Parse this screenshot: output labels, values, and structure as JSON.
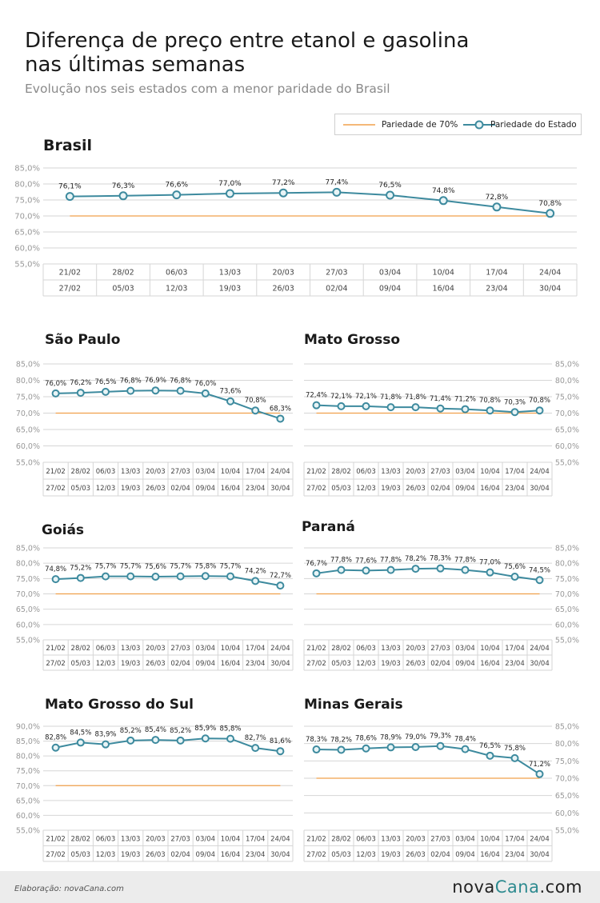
{
  "header": {
    "title_line1": "Diferença de preço entre etanol e gasolina",
    "title_line2": "nas últimas semanas",
    "subtitle": "Evolução nos seis estados com a menor paridade do Brasil"
  },
  "legend": {
    "reference_label": "Pariedade de 70%",
    "state_label": "Pariedade do Estado"
  },
  "colors": {
    "series_line": "#3d8a9e",
    "marker_fill": "#e8f4f6",
    "reference_line": "#f0a04b",
    "grid": "#d6d6d6",
    "tick_text": "#999999",
    "brand_accent": "#2d8a8f"
  },
  "footer": {
    "credit": "Elaboração: novaCana.com",
    "brand_part1": "nova",
    "brand_part2": "Cana",
    "brand_part3": ".com"
  },
  "chart_data": [
    {
      "type": "line",
      "title": "Brasil",
      "categories_start": [
        "21/02",
        "28/02",
        "06/03",
        "13/03",
        "20/03",
        "27/03",
        "03/04",
        "10/04",
        "17/04",
        "24/04"
      ],
      "categories_end": [
        "27/02",
        "05/03",
        "12/03",
        "19/03",
        "26/03",
        "02/04",
        "09/04",
        "16/04",
        "23/04",
        "30/04"
      ],
      "values": [
        76.1,
        76.3,
        76.6,
        77.0,
        77.2,
        77.4,
        76.5,
        74.8,
        72.8,
        70.8
      ],
      "labels": [
        "76,1%",
        "76,3%",
        "76,6%",
        "77,0%",
        "77,2%",
        "77,4%",
        "76,5%",
        "74,8%",
        "72,8%",
        "70,8%"
      ],
      "reference": 70,
      "ylim": [
        55,
        85
      ],
      "yticks": [
        "55,0%",
        "60,0%",
        "65,0%",
        "70,0%",
        "75,0%",
        "80,0%",
        "85,0%"
      ],
      "axis_side": "left"
    },
    {
      "type": "line",
      "title": "São Paulo",
      "categories_start": [
        "21/02",
        "28/02",
        "06/03",
        "13/03",
        "20/03",
        "27/03",
        "03/04",
        "10/04",
        "17/04",
        "24/04"
      ],
      "categories_end": [
        "27/02",
        "05/03",
        "12/03",
        "19/03",
        "26/03",
        "02/04",
        "09/04",
        "16/04",
        "23/04",
        "30/04"
      ],
      "values": [
        76.0,
        76.2,
        76.5,
        76.8,
        76.9,
        76.8,
        76.0,
        73.6,
        70.8,
        68.3
      ],
      "labels": [
        "76,0%",
        "76,2%",
        "76,5%",
        "76,8%",
        "76,9%",
        "76,8%",
        "76,0%",
        "73,6%",
        "70,8%",
        "68,3%"
      ],
      "reference": 70,
      "ylim": [
        55,
        85
      ],
      "yticks": [
        "55,0%",
        "60,0%",
        "65,0%",
        "70,0%",
        "75,0%",
        "80,0%",
        "85,0%"
      ],
      "axis_side": "left"
    },
    {
      "type": "line",
      "title": "Mato Grosso",
      "categories_start": [
        "21/02",
        "28/02",
        "06/03",
        "13/03",
        "20/03",
        "27/03",
        "03/04",
        "10/04",
        "17/04",
        "24/04"
      ],
      "categories_end": [
        "27/02",
        "05/03",
        "12/03",
        "19/03",
        "26/03",
        "02/04",
        "09/04",
        "16/04",
        "23/04",
        "30/04"
      ],
      "values": [
        72.4,
        72.1,
        72.1,
        71.8,
        71.8,
        71.4,
        71.2,
        70.8,
        70.3,
        70.8
      ],
      "labels": [
        "72,4%",
        "72,1%",
        "72,1%",
        "71,8%",
        "71,8%",
        "71,4%",
        "71,2%",
        "70,8%",
        "70,3%",
        "70,8%"
      ],
      "reference": 70,
      "ylim": [
        55,
        85
      ],
      "yticks": [
        "55,0%",
        "60,0%",
        "65,0%",
        "70,0%",
        "75,0%",
        "80,0%",
        "85,0%"
      ],
      "axis_side": "right"
    },
    {
      "type": "line",
      "title": "Goiás",
      "categories_start": [
        "21/02",
        "28/02",
        "06/03",
        "13/03",
        "20/03",
        "27/03",
        "03/04",
        "10/04",
        "17/04",
        "24/04"
      ],
      "categories_end": [
        "27/02",
        "05/03",
        "12/03",
        "19/03",
        "26/03",
        "02/04",
        "09/04",
        "16/04",
        "23/04",
        "30/04"
      ],
      "values": [
        74.8,
        75.2,
        75.7,
        75.7,
        75.6,
        75.7,
        75.8,
        75.7,
        74.2,
        72.7
      ],
      "labels": [
        "74,8%",
        "75,2%",
        "75,7%",
        "75,7%",
        "75,6%",
        "75,7%",
        "75,8%",
        "75,7%",
        "74,2%",
        "72,7%"
      ],
      "reference": 70,
      "ylim": [
        55,
        85
      ],
      "yticks": [
        "55,0%",
        "60,0%",
        "65,0%",
        "70,0%",
        "75,0%",
        "80,0%",
        "85,0%"
      ],
      "axis_side": "left"
    },
    {
      "type": "line",
      "title": "Paraná",
      "categories_start": [
        "21/02",
        "28/02",
        "06/03",
        "13/03",
        "20/03",
        "27/03",
        "03/04",
        "10/04",
        "17/04",
        "24/04"
      ],
      "categories_end": [
        "27/02",
        "05/03",
        "12/03",
        "19/03",
        "26/03",
        "02/04",
        "09/04",
        "16/04",
        "23/04",
        "30/04"
      ],
      "values": [
        76.7,
        77.8,
        77.6,
        77.8,
        78.2,
        78.3,
        77.8,
        77.0,
        75.6,
        74.5
      ],
      "labels": [
        "76,7%",
        "77,8%",
        "77,6%",
        "77,8%",
        "78,2%",
        "78,3%",
        "77,8%",
        "77,0%",
        "75,6%",
        "74,5%"
      ],
      "reference": 70,
      "ylim": [
        55,
        85
      ],
      "yticks": [
        "55,0%",
        "60,0%",
        "65,0%",
        "70,0%",
        "75,0%",
        "80,0%",
        "85,0%"
      ],
      "axis_side": "right"
    },
    {
      "type": "line",
      "title": "Mato Grosso do Sul",
      "categories_start": [
        "21/02",
        "28/02",
        "06/03",
        "13/03",
        "20/03",
        "27/03",
        "03/04",
        "10/04",
        "17/04",
        "24/04"
      ],
      "categories_end": [
        "27/02",
        "05/03",
        "12/03",
        "19/03",
        "26/03",
        "02/04",
        "09/04",
        "16/04",
        "23/04",
        "30/04"
      ],
      "values": [
        82.8,
        84.5,
        83.9,
        85.2,
        85.4,
        85.2,
        85.9,
        85.8,
        82.7,
        81.6
      ],
      "labels": [
        "82,8%",
        "84,5%",
        "83,9%",
        "85,2%",
        "85,4%",
        "85,2%",
        "85,9%",
        "85,8%",
        "82,7%",
        "81,6%"
      ],
      "reference": 70,
      "ylim": [
        55,
        90
      ],
      "yticks": [
        "55,0%",
        "60,0%",
        "65,0%",
        "70,0%",
        "75,0%",
        "80,0%",
        "85,0%",
        "90,0%"
      ],
      "axis_side": "left"
    },
    {
      "type": "line",
      "title": "Minas Gerais",
      "categories_start": [
        "21/02",
        "28/02",
        "06/03",
        "13/03",
        "20/03",
        "27/03",
        "03/04",
        "10/04",
        "17/04",
        "24/04"
      ],
      "categories_end": [
        "27/02",
        "05/03",
        "12/03",
        "19/03",
        "26/03",
        "02/04",
        "09/04",
        "16/04",
        "23/04",
        "30/04"
      ],
      "values": [
        78.3,
        78.2,
        78.6,
        78.9,
        79.0,
        79.3,
        78.4,
        76.5,
        75.8,
        71.2
      ],
      "labels": [
        "78,3%",
        "78,2%",
        "78,6%",
        "78,9%",
        "79,0%",
        "79,3%",
        "78,4%",
        "76,5%",
        "75,8%",
        "71,2%"
      ],
      "reference": 70,
      "ylim": [
        55,
        85
      ],
      "yticks": [
        "55,0%",
        "60,0%",
        "65,0%",
        "70,0%",
        "75,0%",
        "80,0%",
        "85,0%"
      ],
      "axis_side": "right"
    }
  ]
}
